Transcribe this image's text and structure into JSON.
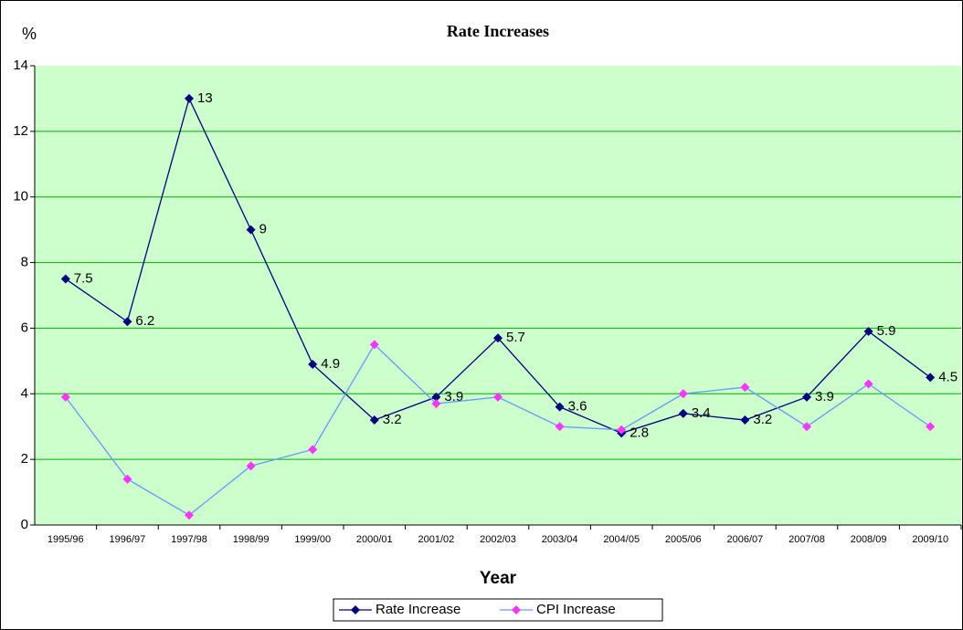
{
  "chart_data": {
    "type": "line",
    "title": "Rate Increases",
    "y_label": "%",
    "x_label": "Year",
    "categories": [
      "1995/96",
      "1996/97",
      "1997/98",
      "1998/99",
      "1999/00",
      "2000/01",
      "2001/02",
      "2002/03",
      "2003/04",
      "2004/05",
      "2005/06",
      "2006/07",
      "2007/08",
      "2008/09",
      "2009/10"
    ],
    "series": [
      {
        "name": "Rate Increase",
        "color": "#000080",
        "marker_color": "#000080",
        "data_labels": true,
        "values": [
          7.5,
          6.2,
          13,
          9,
          4.9,
          3.2,
          3.9,
          5.7,
          3.6,
          2.8,
          3.4,
          3.2,
          3.9,
          5.9,
          4.5
        ]
      },
      {
        "name": "CPI Increase",
        "color": "#6699ff",
        "marker_color": "#ff33ff",
        "data_labels": false,
        "values": [
          3.9,
          1.4,
          0.3,
          1.8,
          2.3,
          5.5,
          3.7,
          3.9,
          3.0,
          2.9,
          4.0,
          4.2,
          3.0,
          4.3,
          3.0
        ]
      }
    ],
    "ylim": [
      0,
      14
    ],
    "yticks": [
      0,
      2,
      4,
      6,
      8,
      10,
      12,
      14
    ],
    "grid": true,
    "plot_background": "#ccffcc",
    "grid_color": "#00b000",
    "legend": "bottom"
  }
}
